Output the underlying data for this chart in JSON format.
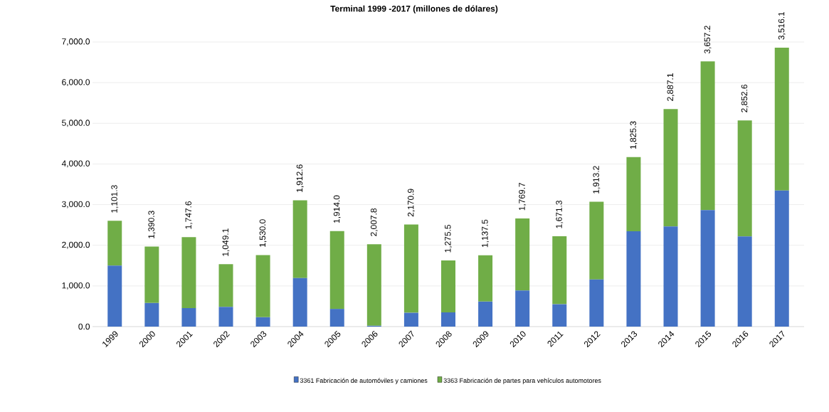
{
  "chart_data": {
    "type": "bar",
    "title": "Terminal 1999 -2017 (millones de dólares)",
    "categories": [
      "1999",
      "2000",
      "2001",
      "2002",
      "2003",
      "2004",
      "2005",
      "2006",
      "2007",
      "2008",
      "2009",
      "2010",
      "2011",
      "2012",
      "2013",
      "2014",
      "2015",
      "2016",
      "2017"
    ],
    "stacked": true,
    "grid": "y",
    "legend": "bottom",
    "ylim": [
      0,
      7000
    ],
    "yticks": [
      {
        "value": 0,
        "label": "0.0"
      },
      {
        "value": 1000,
        "label": "1,000.0"
      },
      {
        "value": 2000,
        "label": "2,000.0"
      },
      {
        "value": 3000,
        "label": "3,000.0"
      },
      {
        "value": 4000,
        "label": "4,000.0"
      },
      {
        "value": 5000,
        "label": "5,000.0"
      },
      {
        "value": 6000,
        "label": "6,000.0"
      },
      {
        "value": 7000,
        "label": "7,000.0"
      }
    ],
    "series": [
      {
        "name": "3361 Fabricación de automóviles y camiones",
        "color": "#4472c4",
        "values": [
          1500,
          580,
          455,
          485,
          230,
          1195,
          435,
          20,
          340,
          350,
          615,
          890,
          550,
          1160,
          2345,
          2465,
          2865,
          2220,
          3345
        ]
      },
      {
        "name": "3363 Fabricación de partes para vehículos automotores",
        "color": "#70ad47",
        "values": [
          1101.3,
          1390.3,
          1747.6,
          1049.1,
          1530.0,
          1912.6,
          1914.0,
          2007.8,
          2170.9,
          1275.5,
          1137.5,
          1769.7,
          1671.3,
          1913.2,
          1825.3,
          2887.1,
          3657.2,
          2852.6,
          3516.1
        ],
        "value_labels": [
          "1,101.3",
          "1,390.3",
          "1,747.6",
          "1,049.1",
          "1,530.0",
          "1,912.6",
          "1,914.0",
          "2,007.8",
          "2,170.9",
          "1,275.5",
          "1,137.5",
          "1,769.7",
          "1,671.3",
          "1,913.2",
          "1,825.3",
          "2,887.1",
          "3,657.2",
          "2,852.6",
          "3,516.1"
        ]
      }
    ]
  }
}
